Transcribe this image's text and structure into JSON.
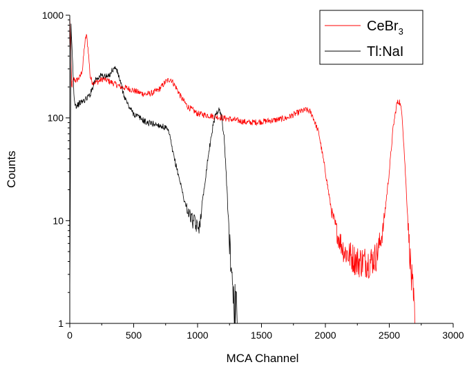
{
  "chart_data": {
    "type": "line",
    "xlabel": "MCA Channel",
    "ylabel": "Counts",
    "xlim": [
      0,
      3000
    ],
    "ylim": [
      1,
      1000
    ],
    "yscale": "log",
    "x_ticks": [
      0,
      500,
      1000,
      1500,
      2000,
      2500,
      3000
    ],
    "x_tick_labels": [
      "0",
      "500",
      "1000",
      "1500",
      "2000",
      "2500",
      "3000"
    ],
    "y_ticks": [
      1,
      10,
      100,
      1000
    ],
    "y_tick_labels": [
      "1",
      "10",
      "100",
      "1000"
    ],
    "grid": false,
    "legend_position": "top-right",
    "series": [
      {
        "name_main": "CeBr",
        "name_sub": "3",
        "color": "#ff0000",
        "x": [
          0,
          15,
          30,
          50,
          80,
          100,
          115,
          130,
          145,
          160,
          180,
          220,
          260,
          300,
          350,
          400,
          450,
          500,
          550,
          600,
          650,
          700,
          750,
          790,
          830,
          870,
          920,
          1000,
          1100,
          1200,
          1300,
          1400,
          1500,
          1600,
          1700,
          1800,
          1850,
          1880,
          1900,
          1950,
          2000,
          2050,
          2100,
          2150,
          2200,
          2250,
          2300,
          2350,
          2400,
          2450,
          2500,
          2530,
          2560,
          2580,
          2600,
          2620,
          2650,
          2680,
          2700
        ],
        "y": [
          1000,
          200,
          240,
          230,
          250,
          300,
          500,
          650,
          450,
          250,
          220,
          225,
          240,
          230,
          215,
          200,
          195,
          185,
          175,
          170,
          175,
          190,
          225,
          240,
          200,
          160,
          130,
          110,
          105,
          100,
          95,
          90,
          92,
          95,
          100,
          115,
          120,
          115,
          105,
          70,
          30,
          12,
          7,
          5,
          4.5,
          4,
          4,
          4,
          4.5,
          8,
          30,
          80,
          140,
          145,
          110,
          40,
          8,
          2,
          1
        ]
      },
      {
        "name": "Tl:NaI",
        "color": "#000000",
        "x": [
          0,
          10,
          20,
          35,
          50,
          80,
          120,
          160,
          200,
          250,
          300,
          330,
          360,
          390,
          420,
          460,
          500,
          550,
          600,
          650,
          700,
          750,
          780,
          800,
          830,
          860,
          900,
          930,
          960,
          990,
          1000,
          1020,
          1050,
          1080,
          1110,
          1140,
          1170,
          1190,
          1210,
          1230,
          1250,
          1270,
          1290,
          1310
        ],
        "y": [
          1,
          800,
          400,
          150,
          130,
          140,
          150,
          170,
          240,
          260,
          250,
          290,
          310,
          240,
          170,
          130,
          110,
          100,
          90,
          88,
          85,
          80,
          70,
          50,
          35,
          25,
          15,
          12,
          10,
          9,
          8,
          10,
          20,
          40,
          70,
          110,
          120,
          100,
          60,
          20,
          6,
          3,
          1.5,
          1
        ]
      }
    ]
  }
}
